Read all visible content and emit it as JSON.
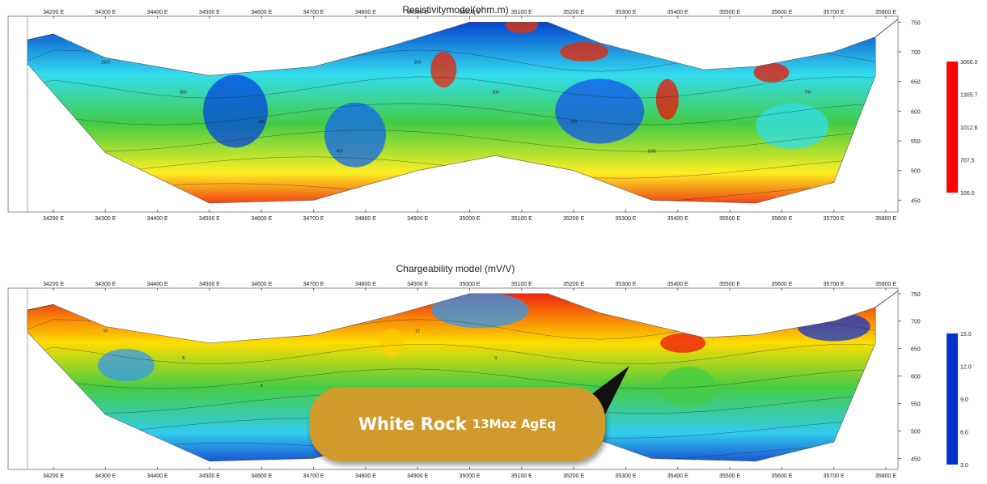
{
  "charts": [
    {
      "type": "heatmap",
      "title": "Resistivitymodel(ohm.m)",
      "x_ticks": [
        "34200 E",
        "34300 E",
        "34400 E",
        "34500 E",
        "34600 E",
        "34700 E",
        "34800 E",
        "34900 E",
        "35000 E",
        "35100 E",
        "35200 E",
        "35300 E",
        "35400 E",
        "35500 E",
        "35600 E",
        "35700 E",
        "35800 E"
      ],
      "y_ticks": [
        "750",
        "700",
        "650",
        "600",
        "550",
        "500",
        "450"
      ],
      "colorbar": {
        "labels": [
          "3000.0",
          "1305.7",
          "1012.6",
          "707.5",
          "100.0"
        ],
        "colors": [
          "#ff0000",
          "#ffee00",
          "#33cc33",
          "#33ddee",
          "#0033cc"
        ]
      },
      "contour_labels": [
        "1000",
        "800",
        "600",
        "400",
        "200",
        "300",
        "500",
        "1500",
        "1300",
        "700"
      ],
      "colors": {
        "top": "#0033cc",
        "high": "#33ddee",
        "mid": "#44cc44",
        "low": "#ffee22",
        "bottom": "#ee1111"
      }
    },
    {
      "type": "heatmap",
      "title": "Chargeability model (mV/V)",
      "x_ticks": [
        "34200 E",
        "34300 E",
        "34400 E",
        "34500 E",
        "34600 E",
        "34700 E",
        "34800 E",
        "34900 E",
        "35000 E",
        "35100 E",
        "35200 E",
        "35300 E",
        "35400 E",
        "35500 E",
        "35600 E",
        "35700 E",
        "35800 E"
      ],
      "y_ticks": [
        "750",
        "700",
        "650",
        "600",
        "550",
        "500",
        "450"
      ],
      "colorbar": {
        "labels": [
          "15.0",
          "12.0",
          "9.0",
          "6.0",
          "3.0"
        ],
        "colors": [
          "#0033cc",
          "#33ddee",
          "#44cc44",
          "#ffee00",
          "#ee1111"
        ]
      },
      "contour_labels": [
        "10",
        "8",
        "6",
        "4",
        "12",
        "3"
      ],
      "colors": {
        "top": "#ee1111",
        "high": "#ffdd00",
        "mid": "#44cc44",
        "low": "#33ccee",
        "bottom": "#1133cc"
      }
    }
  ],
  "callout": {
    "name": "White Rock",
    "size": "13Moz AgEq",
    "color": "#d09a2c"
  }
}
